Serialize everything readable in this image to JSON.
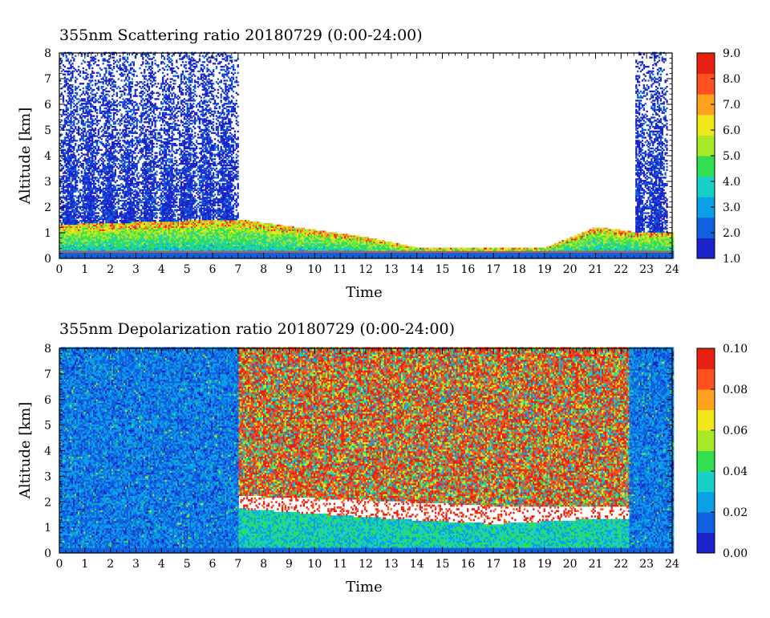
{
  "chart_data": [
    {
      "type": "heatmap",
      "title": "355nm Scattering ratio  20180729 (0:00-24:00)",
      "xlabel": "Time",
      "ylabel": "Altitude [km]",
      "xlim": [
        0,
        24
      ],
      "ylim": [
        0,
        8
      ],
      "x_ticks": [
        "0",
        "1",
        "2",
        "3",
        "4",
        "5",
        "6",
        "7",
        "8",
        "9",
        "10",
        "11",
        "12",
        "13",
        "14",
        "15",
        "16",
        "17",
        "18",
        "19",
        "20",
        "21",
        "22",
        "23",
        "24"
      ],
      "y_ticks": [
        "0",
        "1",
        "2",
        "3",
        "4",
        "5",
        "6",
        "7",
        "8"
      ],
      "colorbar": {
        "range": [
          1.0,
          9.0
        ],
        "ticks": [
          "1.0",
          "2.0",
          "3.0",
          "4.0",
          "5.0",
          "6.0",
          "7.0",
          "8.0",
          "9.0"
        ]
      },
      "features": {
        "high_clouds_time_ranges_h": [
          [
            0,
            7
          ],
          [
            22.5,
            23.8
          ]
        ],
        "boundary_layer_top_km": [
          [
            0,
            1.3
          ],
          [
            7,
            1.5
          ],
          [
            12,
            0.8
          ],
          [
            14,
            0.4
          ],
          [
            19,
            0.4
          ],
          [
            21,
            1.2
          ],
          [
            22.5,
            1.0
          ],
          [
            24,
            1.0
          ]
        ],
        "near_ground_layer_km": 0.3
      }
    },
    {
      "type": "heatmap",
      "title": "355nm Depolarization ratio  20180729 (0:00-24:00)",
      "xlabel": "Time",
      "ylabel": "Altitude [km]",
      "xlim": [
        0,
        24
      ],
      "ylim": [
        0,
        8
      ],
      "x_ticks": [
        "0",
        "1",
        "2",
        "3",
        "4",
        "5",
        "6",
        "7",
        "8",
        "9",
        "10",
        "11",
        "12",
        "13",
        "14",
        "15",
        "16",
        "17",
        "18",
        "19",
        "20",
        "21",
        "22",
        "23",
        "24"
      ],
      "y_ticks": [
        "0",
        "1",
        "2",
        "3",
        "4",
        "5",
        "6",
        "7",
        "8"
      ],
      "colorbar": {
        "range": [
          0.0,
          0.1
        ],
        "ticks": [
          "0.00",
          "0.02",
          "0.04",
          "0.06",
          "0.08",
          "0.10"
        ]
      },
      "features": {
        "low_depol_time_ranges_h": [
          [
            0,
            7
          ],
          [
            22.3,
            24
          ]
        ],
        "noisy_high_depol_time_range_h": [
          7,
          22.3
        ],
        "blank_band_km": [
          [
            7,
            1.7,
            2.2
          ],
          [
            13,
            1.3,
            2.0
          ],
          [
            17,
            1.1,
            1.8
          ],
          [
            21,
            1.3,
            1.8
          ]
        ]
      }
    }
  ],
  "colormap": [
    "#1c22c8",
    "#1060e0",
    "#0aa0e8",
    "#18d0c8",
    "#30e050",
    "#a8e828",
    "#f0e818",
    "#ffa020",
    "#ff5020",
    "#e82014"
  ]
}
